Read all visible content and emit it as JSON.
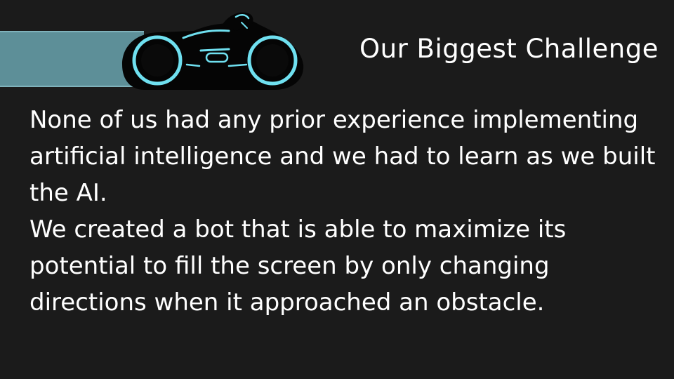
{
  "slide": {
    "title": "Our Biggest Challenge",
    "paragraphs": [
      "None of us had any prior experience implementing artificial intelligence and we had to learn as we built the AI.",
      "We created a bot that is able to maximize its potential to fill the screen by only changing directions when it approached an obstacle."
    ]
  },
  "graphic": {
    "icon": "light-cycle-icon",
    "trail_color": "#5d8f98",
    "glow_color": "#6fe0f0",
    "bike_body_color": "#050505"
  },
  "colors": {
    "background": "#1b1b1b",
    "text": "#ffffff"
  }
}
